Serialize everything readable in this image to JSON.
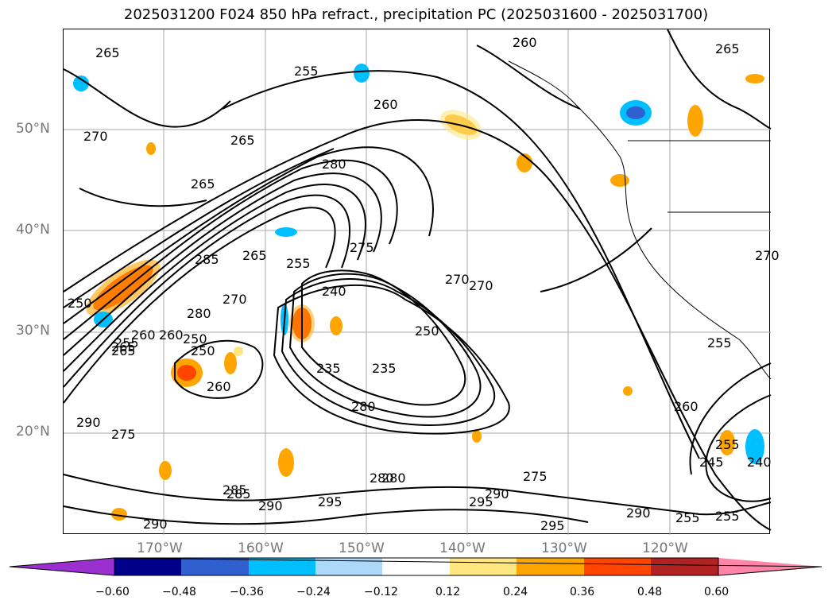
{
  "title": "2025031200 F024 850 hPa refract., precipitation PC (2025031600 - 2025031700)",
  "map": {
    "lat_labels": [
      "50°N",
      "40°N",
      "30°N",
      "20°N"
    ],
    "lon_labels": [
      "170°W",
      "160°W",
      "150°W",
      "140°W",
      "130°W",
      "120°W"
    ],
    "contour_labels": [
      "265",
      "260",
      "255",
      "260",
      "265",
      "280",
      "265",
      "270",
      "250",
      "275",
      "255",
      "265",
      "285",
      "280",
      "260",
      "270",
      "240",
      "235",
      "250",
      "255",
      "265",
      "270",
      "270",
      "290",
      "275",
      "290",
      "290",
      "280",
      "285",
      "295",
      "290",
      "295",
      "295",
      "275",
      "290",
      "260",
      "245",
      "255",
      "240",
      "255",
      "260",
      "285",
      "280",
      "250",
      "265",
      "255",
      "260",
      "265",
      "270",
      "250",
      "235",
      "255",
      "280"
    ]
  },
  "colorbar": {
    "colors": [
      "#9b30d0",
      "#00008b",
      "#3060d0",
      "#00bfff",
      "#add8f8",
      "#ffffff",
      "#ffe680",
      "#ffa500",
      "#ff4500",
      "#b22222",
      "#ff85a8"
    ],
    "ticks": [
      "−0.60",
      "−0.48",
      "−0.36",
      "−0.24",
      "−0.12",
      "0.12",
      "0.24",
      "0.36",
      "0.48",
      "0.60"
    ]
  }
}
